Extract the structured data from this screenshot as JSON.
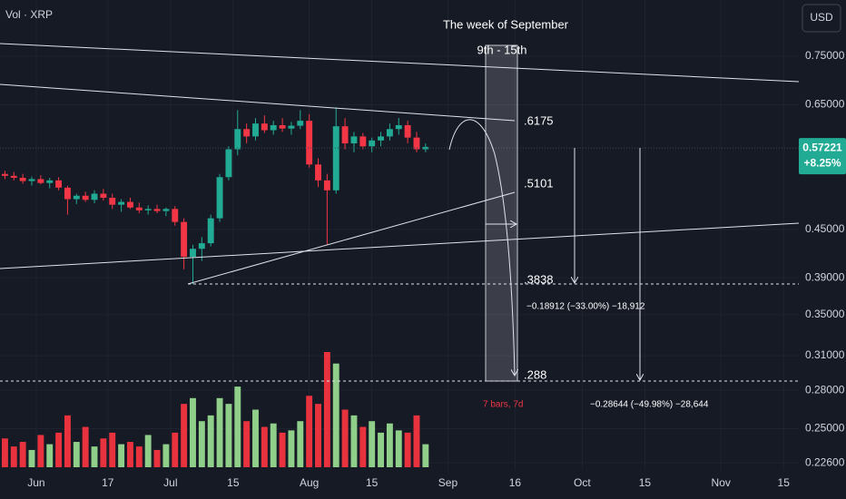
{
  "chart_data": {
    "type": "candlestick",
    "symbol_label": "Vol · XRP",
    "currency": "USD",
    "log_scale": true,
    "grid": true,
    "up_color": "#22ab94",
    "down_color": "#f23645",
    "volume_up_color": "#8fcf8a",
    "volume_down_color": "#e8333f",
    "x": [
      -7,
      -5,
      -3,
      -1,
      1,
      3,
      5,
      7,
      9,
      11,
      13,
      15,
      17,
      19,
      21,
      23,
      25,
      27,
      29,
      31,
      33,
      35,
      37,
      39,
      41,
      43,
      45,
      47,
      49,
      51,
      53,
      55,
      57,
      59,
      61,
      63,
      65,
      67,
      69,
      71,
      73,
      75,
      77,
      79,
      81,
      83,
      85,
      87
    ],
    "open": [
      0.53,
      0.527,
      0.524,
      0.519,
      0.522,
      0.516,
      0.52,
      0.509,
      0.492,
      0.497,
      0.491,
      0.5,
      0.494,
      0.484,
      0.488,
      0.48,
      0.476,
      0.478,
      0.475,
      0.478,
      0.46,
      0.415,
      0.425,
      0.432,
      0.465,
      0.525,
      0.57,
      0.605,
      0.592,
      0.615,
      0.603,
      0.612,
      0.606,
      0.611,
      0.62,
      0.545,
      0.52,
      0.505,
      0.61,
      0.58,
      0.592,
      0.575,
      0.585,
      0.592,
      0.605,
      0.612,
      0.59,
      0.57
    ],
    "high": [
      0.535,
      0.533,
      0.53,
      0.526,
      0.528,
      0.524,
      0.525,
      0.512,
      0.5,
      0.503,
      0.505,
      0.507,
      0.5,
      0.492,
      0.494,
      0.487,
      0.483,
      0.484,
      0.48,
      0.482,
      0.465,
      0.43,
      0.44,
      0.47,
      0.53,
      0.575,
      0.64,
      0.615,
      0.625,
      0.63,
      0.62,
      0.625,
      0.618,
      0.64,
      0.632,
      0.555,
      0.53,
      0.645,
      0.625,
      0.6,
      0.598,
      0.59,
      0.6,
      0.615,
      0.625,
      0.62,
      0.6,
      0.58
    ],
    "low": [
      0.522,
      0.52,
      0.515,
      0.512,
      0.514,
      0.508,
      0.505,
      0.47,
      0.485,
      0.488,
      0.486,
      0.49,
      0.478,
      0.474,
      0.478,
      0.472,
      0.47,
      0.472,
      0.468,
      0.455,
      0.4,
      0.383,
      0.41,
      0.428,
      0.46,
      0.52,
      0.56,
      0.58,
      0.585,
      0.598,
      0.595,
      0.6,
      0.595,
      0.605,
      0.54,
      0.51,
      0.43,
      0.5,
      0.57,
      0.565,
      0.57,
      0.565,
      0.575,
      0.585,
      0.595,
      0.58,
      0.565,
      0.565
    ],
    "close": [
      0.527,
      0.524,
      0.519,
      0.522,
      0.516,
      0.52,
      0.509,
      0.492,
      0.497,
      0.491,
      0.5,
      0.494,
      0.484,
      0.488,
      0.48,
      0.476,
      0.478,
      0.475,
      0.478,
      0.46,
      0.415,
      0.425,
      0.432,
      0.465,
      0.525,
      0.57,
      0.605,
      0.592,
      0.615,
      0.603,
      0.612,
      0.606,
      0.611,
      0.62,
      0.545,
      0.52,
      0.505,
      0.61,
      0.58,
      0.592,
      0.575,
      0.585,
      0.592,
      0.605,
      0.612,
      0.59,
      0.57,
      0.574
    ],
    "volume": [
      25,
      18,
      22,
      15,
      28,
      20,
      30,
      45,
      22,
      35,
      18,
      25,
      30,
      20,
      22,
      18,
      28,
      15,
      20,
      30,
      55,
      60,
      40,
      45,
      60,
      55,
      70,
      40,
      50,
      35,
      38,
      30,
      32,
      40,
      62,
      55,
      100,
      90,
      50,
      45,
      35,
      40,
      30,
      38,
      32,
      30,
      45,
      20
    ],
    "volume_ylim": [
      0,
      100
    ],
    "xlim": [
      -8.1,
      170.4
    ],
    "xticks": [
      {
        "value": 0,
        "label": "Jun"
      },
      {
        "value": 16,
        "label": "17"
      },
      {
        "value": 30,
        "label": "Jul"
      },
      {
        "value": 44,
        "label": "15"
      },
      {
        "value": 61,
        "label": "Aug"
      },
      {
        "value": 75,
        "label": "15"
      },
      {
        "value": 92,
        "label": "Sep"
      },
      {
        "value": 107,
        "label": "16"
      },
      {
        "value": 122,
        "label": "Oct"
      },
      {
        "value": 136,
        "label": "15"
      },
      {
        "value": 153,
        "label": "Nov"
      },
      {
        "value": 167,
        "label": "15"
      }
    ],
    "ylim": [
      0.2213,
      0.8854
    ],
    "yticks": [
      {
        "value": 0.75,
        "label": "0.75000"
      },
      {
        "value": 0.65,
        "label": "0.65000"
      },
      {
        "value": 0.45,
        "label": "0.45000"
      },
      {
        "value": 0.39,
        "label": "0.39000"
      },
      {
        "value": 0.35,
        "label": "0.35000"
      },
      {
        "value": 0.31,
        "label": "0.31000"
      },
      {
        "value": 0.28,
        "label": "0.28000"
      },
      {
        "value": 0.25,
        "label": "0.25000"
      },
      {
        "value": 0.226,
        "label": "0.22600"
      }
    ],
    "last_price": 0.57221,
    "change": {
      "value": 8.25,
      "label": "+8.25%"
    },
    "annotations": {
      "week_title": "The week of September",
      "week_range": "9th - 15th",
      "level_top": ".6175",
      "level_mid": ".5101",
      "level_low": ".3838",
      "level_target": ".288",
      "measure_1": "−0.18912 (−33.00%) −18,912",
      "range_note": "7 bars, 7d",
      "measure_2": "−0.28644 (−49.98%) −28,644"
    }
  }
}
